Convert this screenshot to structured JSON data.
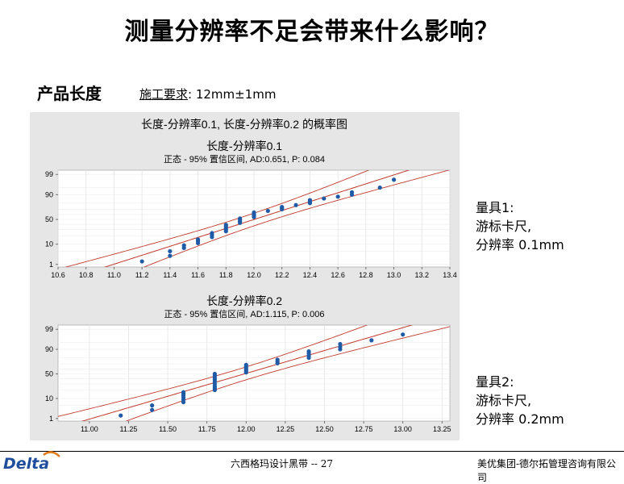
{
  "slide": {
    "title": "测量分辨率不足会带来什么影响？",
    "product_label": "产品长度",
    "requirement_label": "施工要求",
    "requirement_value": ": 12mm±1mm"
  },
  "gauges": [
    {
      "title": "量具1:",
      "line2": "游标卡尺,",
      "line3": "分辨率 0.1mm"
    },
    {
      "title": "量具2:",
      "line2": "游标卡尺,",
      "line3": "分辨率 0.2mm"
    }
  ],
  "footer": {
    "center": "六西格玛设计黑带 -- 27",
    "right": "美优集团-德尔拓管理咨询有限公司",
    "logo_text": "Delta"
  },
  "colors": {
    "points": "#1f5aa6",
    "fit_line": "#c0392b",
    "plot_bg": "#ffffff",
    "frame_bg": "#e6e6e6"
  },
  "chart_data": {
    "type": "scatter",
    "title": "长度-分辨率0.1, 长度-分辨率0.2 的概率图",
    "panels": [
      {
        "subtitle": "长度-分辨率0.1",
        "note": "正态 - 95% 置信区间,  AD:0.651,  P: 0.084",
        "xlim": [
          10.6,
          13.4
        ],
        "xticks": [
          "10.6",
          "10.8",
          "11.0",
          "11.2",
          "11.4",
          "11.6",
          "11.8",
          "12.0",
          "12.2",
          "12.4",
          "12.6",
          "12.8",
          "13.0",
          "13.2",
          "13.4"
        ],
        "ylim": [
          1,
          99
        ],
        "yticks": [
          "99",
          "90",
          "50",
          "10",
          "1"
        ],
        "x": [
          11.2,
          11.4,
          11.4,
          11.5,
          11.5,
          11.6,
          11.6,
          11.6,
          11.7,
          11.7,
          11.7,
          11.8,
          11.8,
          11.8,
          11.8,
          11.8,
          11.9,
          11.9,
          11.9,
          11.9,
          12.0,
          12.0,
          12.0,
          12.0,
          12.1,
          12.2,
          12.2,
          12.2,
          12.3,
          12.4,
          12.4,
          12.4,
          12.5,
          12.6,
          12.7,
          12.7,
          12.9,
          13.0
        ],
        "y": [
          1.5,
          3,
          5,
          7,
          9,
          11,
          13,
          15,
          18,
          21,
          24,
          27,
          30,
          33,
          36,
          39,
          43,
          46,
          49,
          52,
          55,
          58,
          61,
          64,
          67,
          70,
          72,
          74,
          77,
          80,
          82,
          84,
          86,
          88,
          90,
          92,
          95,
          98
        ]
      },
      {
        "subtitle": "长度-分辨率0.2",
        "note": "正态 - 95% 置信区间,  AD:1.115,  P: 0.006",
        "xlim": [
          10.8,
          13.3
        ],
        "xticks": [
          "11.00",
          "11.25",
          "11.50",
          "11.75",
          "12.00",
          "12.25",
          "12.50",
          "12.75",
          "13.00",
          "13.25"
        ],
        "ylim": [
          1,
          99
        ],
        "yticks": [
          "99",
          "90",
          "50",
          "10",
          "1"
        ],
        "x": [
          11.2,
          11.4,
          11.4,
          11.6,
          11.6,
          11.6,
          11.6,
          11.6,
          11.6,
          11.8,
          11.8,
          11.8,
          11.8,
          11.8,
          11.8,
          11.8,
          11.8,
          11.8,
          12.0,
          12.0,
          12.0,
          12.0,
          12.0,
          12.0,
          12.2,
          12.2,
          12.2,
          12.4,
          12.4,
          12.4,
          12.4,
          12.6,
          12.6,
          12.6,
          12.8,
          13.0
        ],
        "y": [
          1.5,
          3,
          5,
          7,
          9,
          11,
          13,
          15,
          17,
          20,
          23,
          26,
          30,
          34,
          38,
          42,
          46,
          50,
          53,
          56,
          59,
          62,
          65,
          68,
          71,
          74,
          77,
          80,
          83,
          86,
          88,
          90,
          92,
          94,
          96,
          98
        ]
      }
    ]
  }
}
